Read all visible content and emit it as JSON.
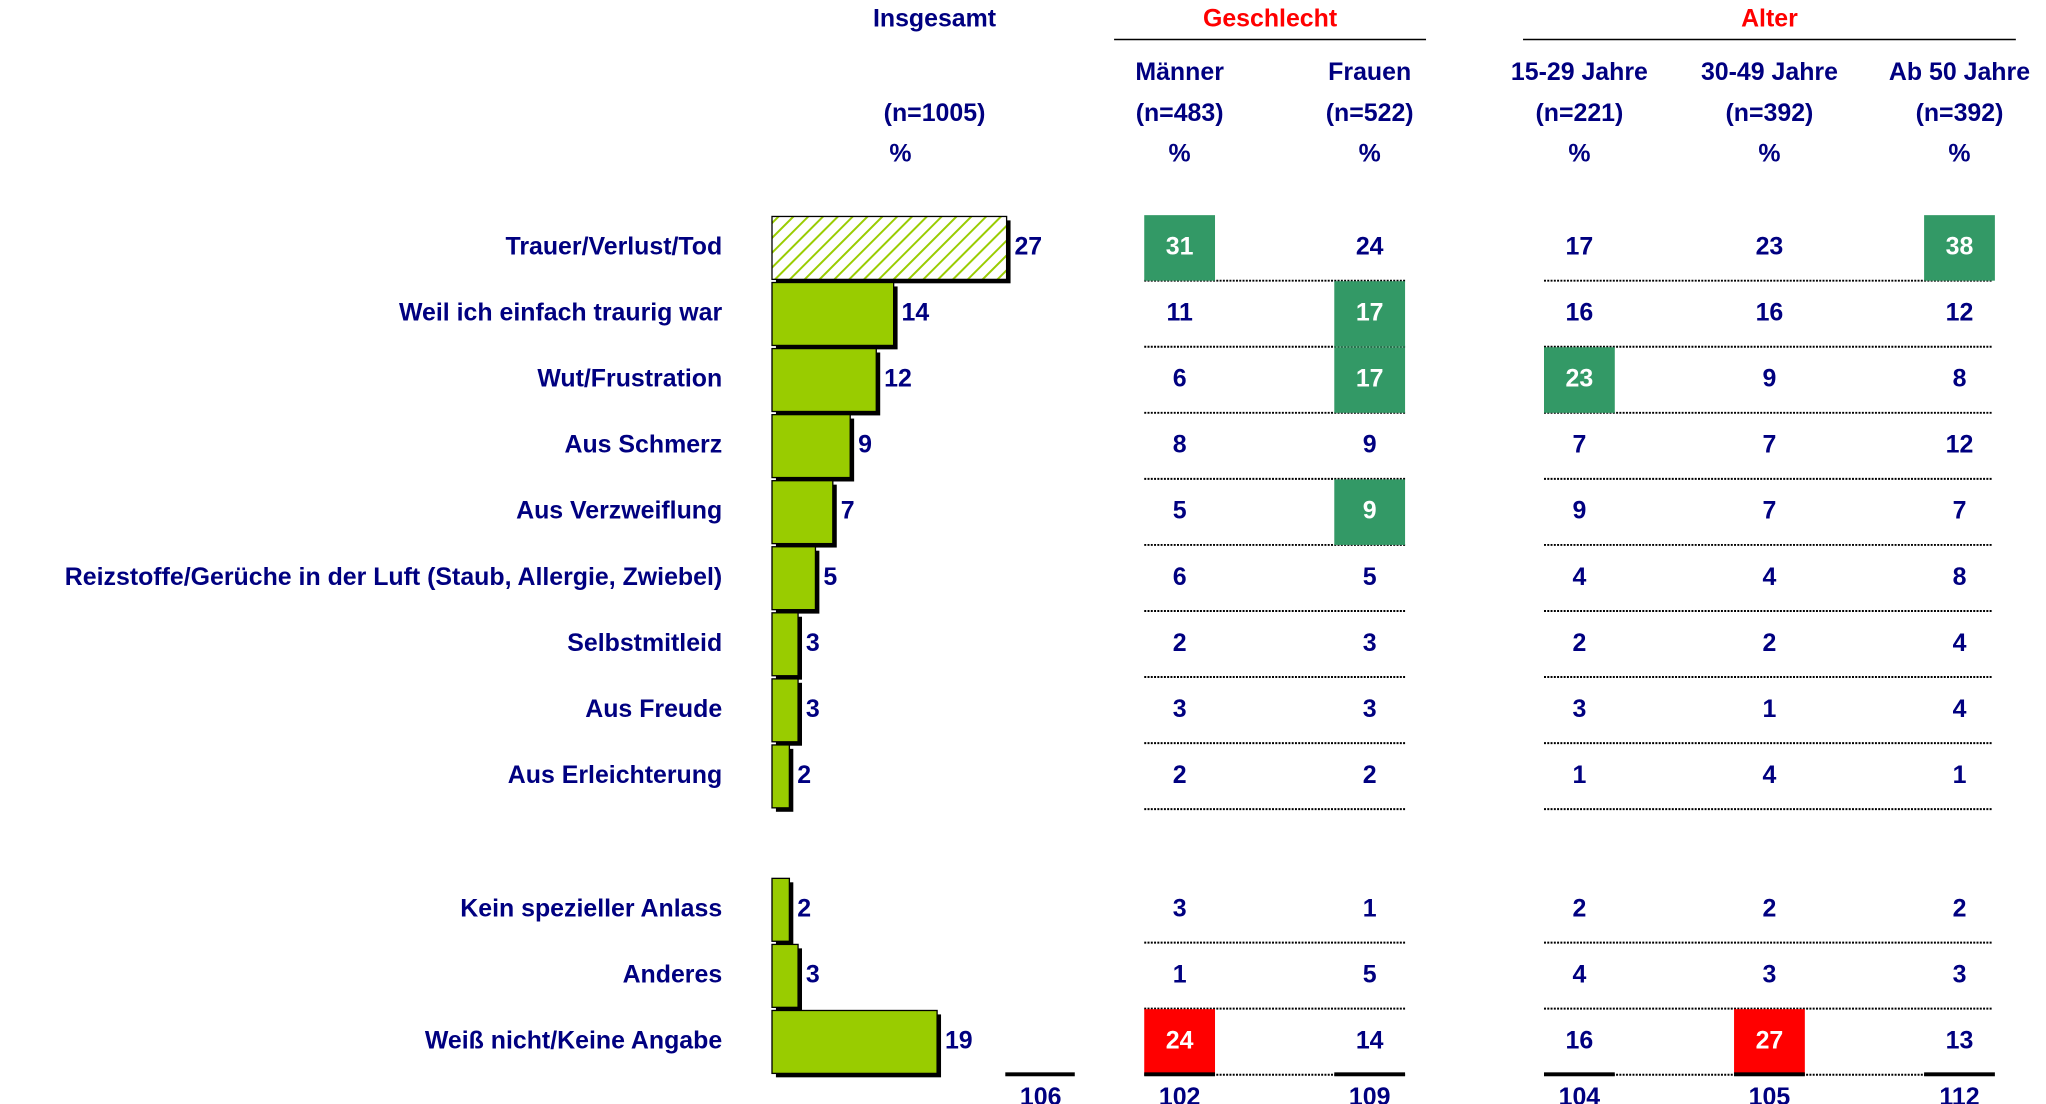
{
  "chart_data": {
    "type": "bar",
    "orientation": "horizontal",
    "title": "Insgesamt",
    "subtitle": "(n=1005)",
    "unit": "%",
    "categories": [
      "Trauer/Verlust/Tod",
      "Weil ich einfach traurig war",
      "Wut/Frustration",
      "Aus Schmerz",
      "Aus Verzweiflung",
      "Reizstoffe/Gerüche in der Luft (Staub, Allergie, Zwiebel)",
      "Selbstmitleid",
      "Aus Freude",
      "Aus Erleichterung",
      "Kein spezieller Anlass",
      "Anderes",
      "Weiß nicht/Keine Angabe"
    ],
    "values": [
      27,
      14,
      12,
      9,
      7,
      5,
      3,
      3,
      2,
      2,
      3,
      19
    ],
    "color": "#99cc00",
    "total": 106
  },
  "table": {
    "highlight_colors": {
      "up": "#339966",
      "down": "#ff0000"
    },
    "groups": [
      {
        "name": "Geschlecht",
        "color": "#ff0000",
        "columns": [
          {
            "name": "Männer",
            "n": "(n=483)",
            "unit": "%",
            "values": [
              31,
              11,
              6,
              8,
              5,
              6,
              2,
              3,
              2,
              3,
              1,
              24
            ],
            "styles": [
              "up",
              null,
              null,
              null,
              null,
              null,
              null,
              null,
              null,
              null,
              null,
              "down"
            ],
            "total": 102
          },
          {
            "name": "Frauen",
            "n": "(n=522)",
            "unit": "%",
            "values": [
              24,
              17,
              17,
              9,
              9,
              5,
              3,
              3,
              2,
              1,
              5,
              14
            ],
            "styles": [
              null,
              "up",
              "up",
              null,
              "up",
              null,
              null,
              null,
              null,
              null,
              null,
              null
            ],
            "total": 109
          }
        ]
      },
      {
        "name": "Alter",
        "color": "#ff0000",
        "columns": [
          {
            "name": "15-29 Jahre",
            "n": "(n=221)",
            "unit": "%",
            "values": [
              17,
              16,
              23,
              7,
              9,
              4,
              2,
              3,
              1,
              2,
              4,
              16
            ],
            "styles": [
              null,
              null,
              "up",
              null,
              null,
              null,
              null,
              null,
              null,
              null,
              null,
              null
            ],
            "total": 104
          },
          {
            "name": "30-49 Jahre",
            "n": "(n=392)",
            "unit": "%",
            "values": [
              23,
              16,
              9,
              7,
              7,
              4,
              2,
              1,
              4,
              2,
              3,
              27
            ],
            "styles": [
              null,
              null,
              null,
              null,
              null,
              null,
              null,
              null,
              null,
              null,
              null,
              "down"
            ],
            "total": 105
          },
          {
            "name": "Ab 50 Jahre",
            "n": "(n=392)",
            "unit": "%",
            "values": [
              38,
              12,
              8,
              12,
              7,
              8,
              4,
              4,
              1,
              2,
              3,
              13
            ],
            "styles": [
              "up",
              null,
              null,
              null,
              null,
              null,
              null,
              null,
              null,
              null,
              null,
              null
            ],
            "total": 112
          }
        ]
      }
    ]
  }
}
